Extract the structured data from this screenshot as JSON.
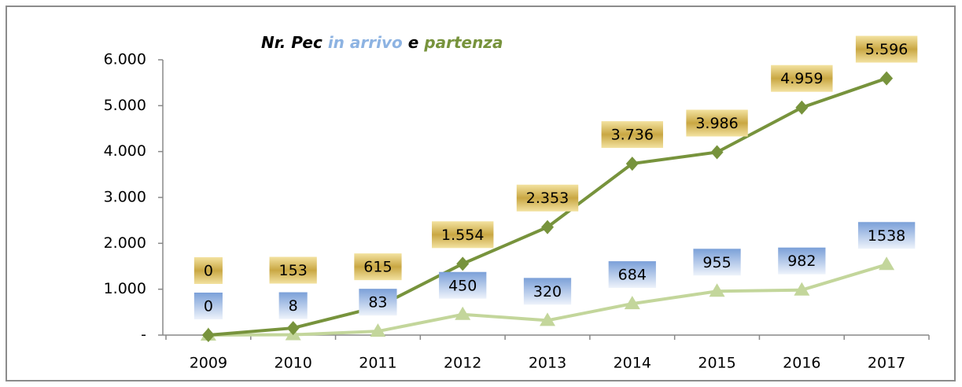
{
  "chart_data": {
    "type": "line",
    "title": "Nr. Pec",
    "title_joiner": "e",
    "categories": [
      "2009",
      "2010",
      "2011",
      "2012",
      "2013",
      "2014",
      "2015",
      "2016",
      "2017"
    ],
    "series": [
      {
        "name": "in arrivo",
        "color": "#c3d69b",
        "label_color": "#8db3e2",
        "marker": "triangle",
        "values": [
          0,
          8,
          83,
          450,
          320,
          684,
          955,
          982,
          1538
        ]
      },
      {
        "name": "partenza",
        "color": "#77933c",
        "label_color": "#c9a743",
        "marker": "diamond",
        "values": [
          0,
          153,
          615,
          1554,
          2353,
          3736,
          3986,
          4959,
          5596
        ],
        "value_labels": [
          "0",
          "153",
          "615",
          "1.554",
          "2.353",
          "3.736",
          "3.986",
          "4.959",
          "5.596"
        ]
      }
    ],
    "ylim": [
      0,
      6000
    ],
    "yticks": [
      {
        "value": 0,
        "label": "-"
      },
      {
        "value": 1000,
        "label": "1.000"
      },
      {
        "value": 2000,
        "label": "2.000"
      },
      {
        "value": 3000,
        "label": "3.000"
      },
      {
        "value": 4000,
        "label": "4.000"
      },
      {
        "value": 5000,
        "label": "5.000"
      },
      {
        "value": 6000,
        "label": "6.000"
      }
    ],
    "grid": false
  }
}
